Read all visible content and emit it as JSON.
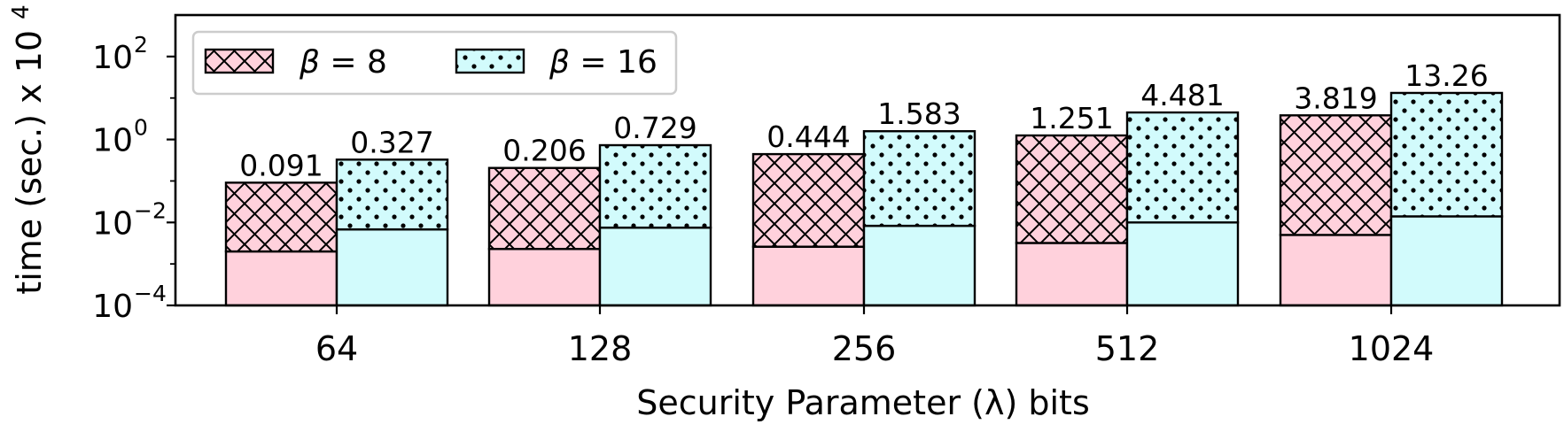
{
  "chart_data": {
    "type": "bar",
    "stacked": true,
    "xlabel": "Security Parameter (λ) bits",
    "ylabel": "time (sec.) x 10^4",
    "ylabel_base": "time (sec.) x 10",
    "ylabel_exp": "4",
    "yscale": "log",
    "ylim": [
      0.0001,
      1000
    ],
    "yticks": [
      {
        "value": 0.0001,
        "base": "10",
        "exp": "−4"
      },
      {
        "value": 0.01,
        "base": "10",
        "exp": "−2"
      },
      {
        "value": 1,
        "base": "10",
        "exp": "0"
      },
      {
        "value": 100,
        "base": "10",
        "exp": "2"
      }
    ],
    "categories": [
      "64",
      "128",
      "256",
      "512",
      "1024"
    ],
    "legend_position": "top-left",
    "series": [
      {
        "name": "β = 8",
        "name_symbol": "β",
        "name_rest": " = 8",
        "color": "#ffd1dc",
        "pattern": "crosshatch",
        "lower_values": [
          0.002,
          0.0023,
          0.0026,
          0.0032,
          0.005
        ],
        "values": [
          0.091,
          0.206,
          0.444,
          1.251,
          3.819
        ],
        "labels": [
          "0.091",
          "0.206",
          "0.444",
          "1.251",
          "3.819"
        ]
      },
      {
        "name": "β = 16",
        "name_symbol": "β",
        "name_rest": " = 16",
        "color": "#d2fbfc",
        "pattern": "dots",
        "lower_values": [
          0.0068,
          0.0075,
          0.0083,
          0.01,
          0.014
        ],
        "values": [
          0.327,
          0.729,
          1.583,
          4.481,
          13.26
        ],
        "labels": [
          "0.327",
          "0.729",
          "1.583",
          "4.481",
          "13.26"
        ]
      }
    ]
  }
}
